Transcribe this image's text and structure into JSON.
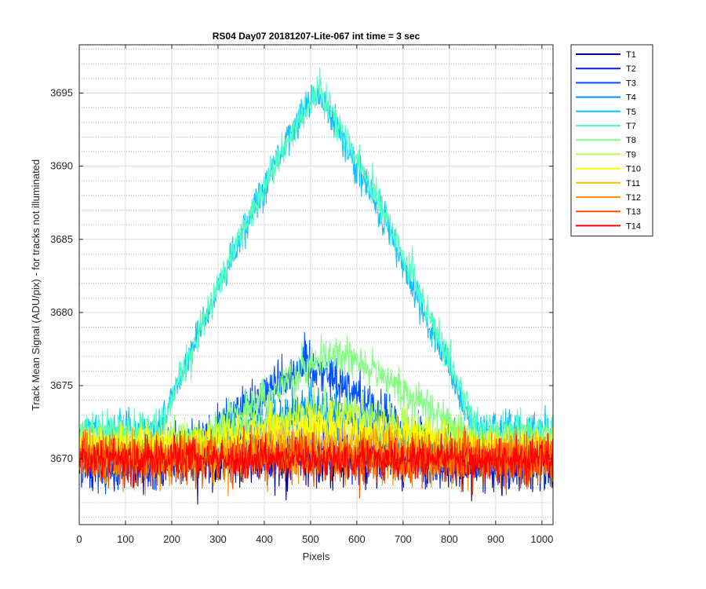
{
  "chart_data": {
    "type": "line",
    "title": "RS04 Day07 20181207-Lite-067 int time = 3 sec",
    "xlabel": "Pixels",
    "ylabel": "Track Mean Signal (ADU/pix) - for tracks not illuminated",
    "xlim": [
      0,
      1024
    ],
    "ylim": [
      3665.5,
      3698.3
    ],
    "x_ticks": [
      0,
      100,
      200,
      300,
      400,
      500,
      600,
      700,
      800,
      900,
      1000
    ],
    "x_tick_labels": [
      "0",
      "100",
      "200",
      "300",
      "400",
      "500",
      "600",
      "700",
      "800",
      "900",
      "1000"
    ],
    "y_ticks": [
      3670,
      3675,
      3680,
      3685,
      3690,
      3695
    ],
    "y_tick_labels": [
      "3670",
      "3675",
      "3680",
      "3685",
      "3690",
      "3695"
    ],
    "y_minor_step": 1,
    "grid": true,
    "legend_position": "outside-top-right",
    "series": [
      {
        "name": "T1",
        "color": "#00008F",
        "mean": 3670.0,
        "noise": 1.6,
        "bump": 0.0,
        "bump_center": 500,
        "bump_width": 280
      },
      {
        "name": "T2",
        "color": "#0020DF",
        "mean": 3670.0,
        "noise": 1.6,
        "bump": 0.5,
        "bump_center": 500,
        "bump_width": 280
      },
      {
        "name": "T3",
        "color": "#0050FF",
        "mean": 3670.0,
        "noise": 1.4,
        "bump": 6.6,
        "bump_center": 495,
        "bump_width": 270
      },
      {
        "name": "T4",
        "color": "#0090FF",
        "mean": 3670.5,
        "noise": 1.3,
        "bump": 3.0,
        "bump_center": 500,
        "bump_width": 280
      },
      {
        "name": "T5",
        "color": "#10C0FF",
        "mean": 3672.0,
        "noise": 1.0,
        "bump": 23.0,
        "bump_center": 510,
        "bump_width": 340
      },
      {
        "name": "T7",
        "color": "#50FFBF",
        "mean": 3672.0,
        "noise": 1.0,
        "bump": 23.2,
        "bump_center": 515,
        "bump_width": 345
      },
      {
        "name": "T8",
        "color": "#80FF80",
        "mean": 3671.0,
        "noise": 1.1,
        "bump": 6.3,
        "bump_center": 560,
        "bump_width": 300
      },
      {
        "name": "T9",
        "color": "#AFFF50",
        "mean": 3671.0,
        "noise": 1.1,
        "bump": 2.4,
        "bump_center": 550,
        "bump_width": 300
      },
      {
        "name": "T10",
        "color": "#FFFF00",
        "mean": 3670.8,
        "noise": 1.2,
        "bump": 1.4,
        "bump_center": 530,
        "bump_width": 300
      },
      {
        "name": "T11",
        "color": "#FFBF00",
        "mean": 3670.3,
        "noise": 1.3,
        "bump": 0.8,
        "bump_center": 520,
        "bump_width": 300
      },
      {
        "name": "T12",
        "color": "#FF8F00",
        "mean": 3670.0,
        "noise": 1.4,
        "bump": 0.3,
        "bump_center": 520,
        "bump_width": 300
      },
      {
        "name": "T13",
        "color": "#FF5000",
        "mean": 3670.0,
        "noise": 1.4,
        "bump": 0.0,
        "bump_center": 520,
        "bump_width": 300
      },
      {
        "name": "T14",
        "color": "#FF0000",
        "mean": 3670.0,
        "noise": 1.1,
        "bump": 0.0,
        "bump_center": 520,
        "bump_width": 300
      }
    ]
  }
}
